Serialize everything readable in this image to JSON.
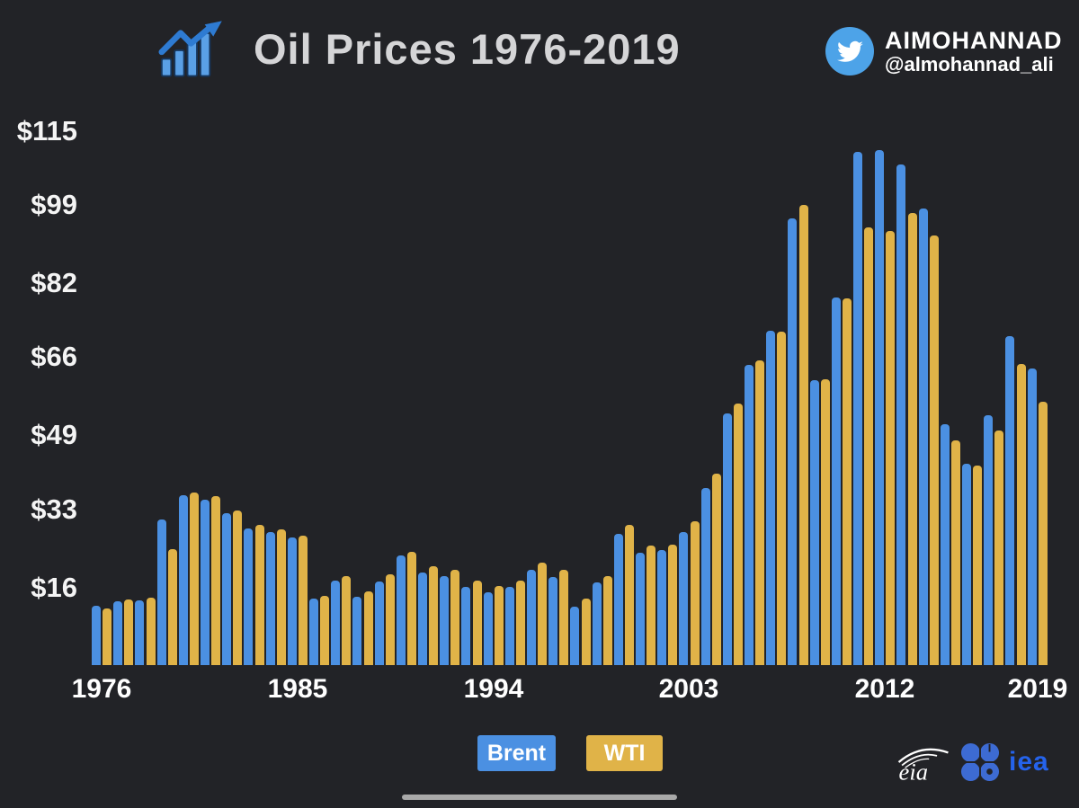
{
  "page": {
    "background": "#222327"
  },
  "header": {
    "title": "Oil Prices 1976-2019",
    "twitter": {
      "name": "AIMOHANNAD",
      "handle": "@almohannad_ali"
    }
  },
  "colors": {
    "brent": "#4b90e2",
    "wti": "#e0b348",
    "title_text": "#d5d5d7",
    "axis_text": "#f4f4f4",
    "twitter_blue": "#4da3e8",
    "iea_blue": "#2563eb",
    "opec_blue": "#3d6bd3",
    "divider_gray": "#a9a9a9"
  },
  "chart_data": {
    "type": "bar",
    "title": "Oil Prices 1976-2019",
    "xlabel": "",
    "ylabel": "",
    "ylim": [
      0,
      117
    ],
    "grid": false,
    "legend_position": "bottom",
    "categories": [
      1976,
      1977,
      1978,
      1979,
      1980,
      1981,
      1982,
      1983,
      1984,
      1985,
      1986,
      1987,
      1988,
      1989,
      1990,
      1991,
      1992,
      1993,
      1994,
      1995,
      1996,
      1997,
      1998,
      1999,
      2000,
      2001,
      2002,
      2003,
      2004,
      2005,
      2006,
      2007,
      2008,
      2009,
      2010,
      2011,
      2012,
      2013,
      2014,
      2015,
      2016,
      2017,
      2018,
      2019
    ],
    "series": [
      {
        "name": "Brent",
        "color": "#4b90e2",
        "values": [
          12.8,
          13.9,
          14.0,
          31.6,
          36.8,
          35.9,
          33.0,
          29.6,
          28.8,
          27.6,
          14.4,
          18.4,
          14.9,
          18.2,
          23.7,
          20.0,
          19.3,
          17.0,
          15.8,
          17.0,
          20.7,
          19.1,
          12.7,
          18.0,
          28.5,
          24.4,
          25.0,
          28.8,
          38.3,
          54.5,
          65.1,
          72.4,
          96.9,
          61.7,
          79.6,
          111.3,
          111.6,
          108.6,
          99.0,
          52.3,
          43.6,
          54.1,
          71.3,
          64.3
        ]
      },
      {
        "name": "WTI",
        "color": "#e0b348",
        "values": [
          12.2,
          14.2,
          14.6,
          25.1,
          37.4,
          36.7,
          33.6,
          30.3,
          29.4,
          28.0,
          15.0,
          19.2,
          16.0,
          19.6,
          24.5,
          21.5,
          20.6,
          18.4,
          17.2,
          18.4,
          22.2,
          20.6,
          14.4,
          19.3,
          30.4,
          25.9,
          26.2,
          31.1,
          41.5,
          56.6,
          66.0,
          72.3,
          99.7,
          62.0,
          79.5,
          94.9,
          94.1,
          98.0,
          93.2,
          48.7,
          43.3,
          50.8,
          65.2,
          57.0
        ]
      }
    ],
    "y_ticks": [
      {
        "label": "$115",
        "value": 115
      },
      {
        "label": "$99",
        "value": 99
      },
      {
        "label": "$82",
        "value": 82
      },
      {
        "label": "$66",
        "value": 66
      },
      {
        "label": "$49",
        "value": 49
      },
      {
        "label": "$33",
        "value": 33
      },
      {
        "label": "$16",
        "value": 16
      }
    ],
    "x_ticks": [
      1976,
      1985,
      1994,
      2003,
      2012,
      2019
    ]
  },
  "legend": {
    "brent_label": "Brent",
    "wti_label": "WTI"
  },
  "footer": {
    "logo_eia": "eia",
    "logo_iea": "iea"
  }
}
